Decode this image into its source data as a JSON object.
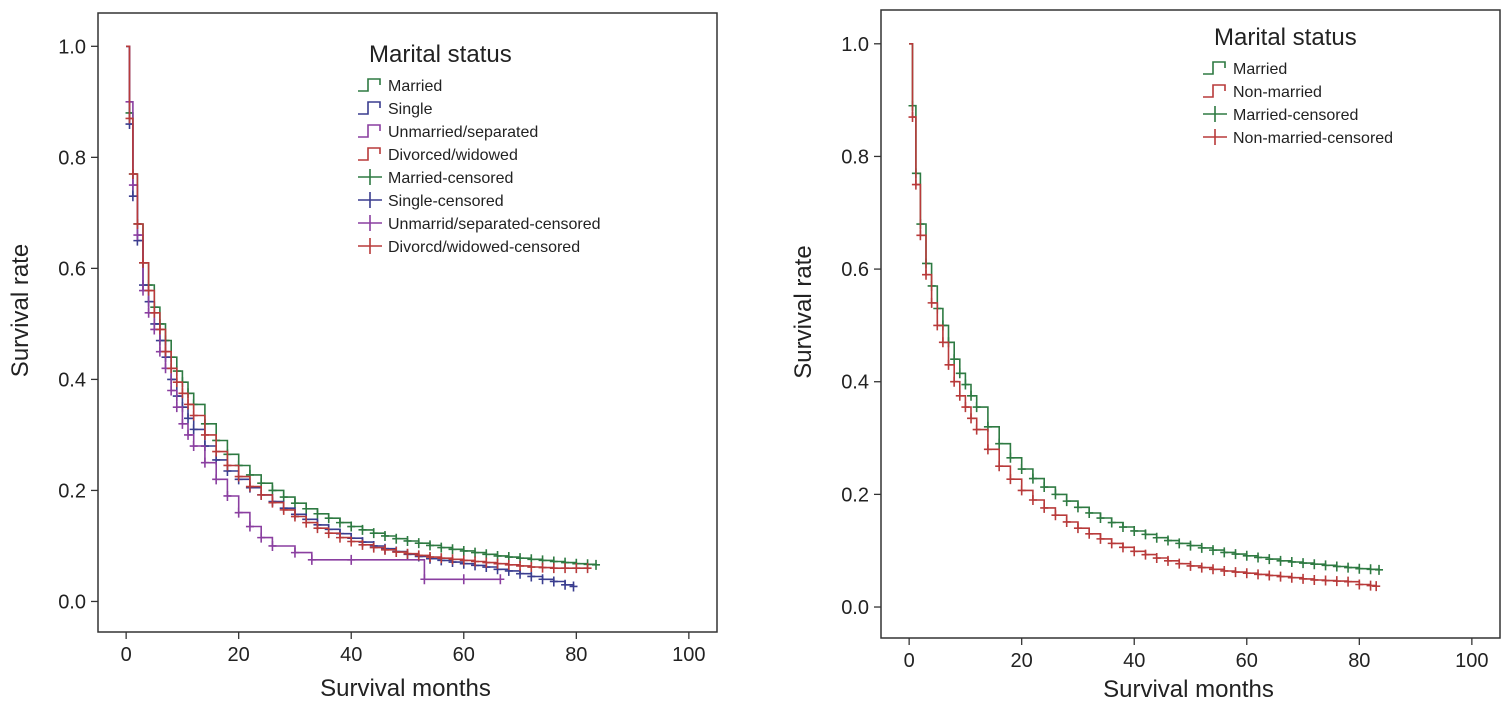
{
  "chart_data": [
    {
      "type": "line",
      "xlabel": "Survival months",
      "ylabel": "Survival rate",
      "xlim": [
        -5,
        105
      ],
      "ylim": [
        -0.055,
        1.06
      ],
      "xticks": [
        "0",
        "20",
        "40",
        "60",
        "80",
        "100"
      ],
      "yticks": [
        "0.0",
        "0.2",
        "0.4",
        "0.6",
        "0.8",
        "1.0"
      ],
      "grid": false,
      "legend_title": "Marital status",
      "legend_position": "top-right",
      "series": [
        {
          "name": "Married",
          "color": "#2e7a42",
          "x": [
            0,
            0.6,
            1.2,
            2,
            3,
            4,
            5,
            6,
            7,
            8,
            9,
            10,
            11,
            12,
            14,
            16,
            18,
            20,
            22,
            24,
            26,
            28,
            30,
            32,
            34,
            36,
            38,
            40,
            42,
            44,
            46,
            48,
            50,
            52,
            54,
            56,
            58,
            60,
            62,
            64,
            66,
            68,
            70,
            72,
            74,
            76,
            78,
            80,
            82,
            83.5
          ],
          "y": [
            1.0,
            0.88,
            0.77,
            0.68,
            0.61,
            0.57,
            0.53,
            0.5,
            0.47,
            0.44,
            0.415,
            0.395,
            0.375,
            0.355,
            0.32,
            0.29,
            0.265,
            0.245,
            0.228,
            0.213,
            0.2,
            0.188,
            0.177,
            0.167,
            0.158,
            0.15,
            0.142,
            0.135,
            0.129,
            0.123,
            0.118,
            0.113,
            0.109,
            0.105,
            0.101,
            0.097,
            0.094,
            0.091,
            0.088,
            0.085,
            0.082,
            0.08,
            0.078,
            0.076,
            0.074,
            0.072,
            0.07,
            0.068,
            0.067,
            0.066
          ]
        },
        {
          "name": "Single",
          "color": "#3a3d8f",
          "x": [
            0,
            0.6,
            1.2,
            2,
            3,
            4,
            5,
            6,
            7,
            8,
            9,
            10,
            11,
            12,
            14,
            16,
            18,
            20,
            22,
            24,
            26,
            28,
            30,
            32,
            34,
            36,
            38,
            40,
            42,
            44,
            46,
            48,
            50,
            52,
            54,
            56,
            58,
            60,
            62,
            64,
            66,
            68,
            70,
            72,
            74,
            76,
            78,
            79.5
          ],
          "y": [
            1.0,
            0.86,
            0.73,
            0.65,
            0.57,
            0.54,
            0.5,
            0.47,
            0.44,
            0.4,
            0.37,
            0.35,
            0.33,
            0.31,
            0.28,
            0.255,
            0.235,
            0.22,
            0.205,
            0.192,
            0.18,
            0.168,
            0.157,
            0.148,
            0.138,
            0.13,
            0.122,
            0.114,
            0.107,
            0.1,
            0.095,
            0.09,
            0.085,
            0.081,
            0.077,
            0.074,
            0.071,
            0.068,
            0.065,
            0.062,
            0.058,
            0.055,
            0.05,
            0.045,
            0.04,
            0.036,
            0.03,
            0.027
          ]
        },
        {
          "name": "Unmarried/separated",
          "color": "#8a3fa0",
          "x": [
            0,
            0.6,
            1.2,
            2,
            3,
            4,
            5,
            6,
            7,
            8,
            9,
            10,
            11,
            12,
            14,
            16,
            18,
            20,
            22,
            24,
            26,
            30,
            33,
            40,
            53,
            60,
            66.5
          ],
          "y": [
            1.0,
            0.9,
            0.75,
            0.66,
            0.56,
            0.52,
            0.49,
            0.45,
            0.42,
            0.38,
            0.35,
            0.32,
            0.3,
            0.28,
            0.25,
            0.22,
            0.19,
            0.16,
            0.135,
            0.115,
            0.1,
            0.088,
            0.075,
            0.075,
            0.04,
            0.04,
            0.04
          ]
        },
        {
          "name": "Divorced/widowed",
          "color": "#b83a3a",
          "x": [
            0,
            0.6,
            1.2,
            2,
            3,
            4,
            5,
            6,
            7,
            8,
            9,
            10,
            11,
            12,
            14,
            16,
            18,
            20,
            22,
            24,
            26,
            28,
            30,
            32,
            34,
            36,
            38,
            40,
            42,
            44,
            46,
            48,
            50,
            52,
            54,
            56,
            58,
            60,
            62,
            64,
            66,
            68,
            70,
            72,
            74,
            76,
            78,
            80,
            82
          ],
          "y": [
            1.0,
            0.87,
            0.77,
            0.68,
            0.61,
            0.56,
            0.52,
            0.49,
            0.45,
            0.42,
            0.395,
            0.375,
            0.355,
            0.335,
            0.3,
            0.27,
            0.245,
            0.225,
            0.207,
            0.192,
            0.178,
            0.165,
            0.153,
            0.142,
            0.132,
            0.123,
            0.115,
            0.108,
            0.102,
            0.097,
            0.093,
            0.089,
            0.086,
            0.083,
            0.08,
            0.078,
            0.076,
            0.074,
            0.072,
            0.07,
            0.068,
            0.066,
            0.064,
            0.062,
            0.061,
            0.06,
            0.06,
            0.06,
            0.06
          ]
        },
        {
          "name": "Married-censored",
          "color": "#2e7a42",
          "kind": "censor"
        },
        {
          "name": "Single-censored",
          "color": "#3a3d8f",
          "kind": "censor"
        },
        {
          "name": "Unmarrid/separated-censored",
          "color": "#8a3fa0",
          "kind": "censor"
        },
        {
          "name": "Divorcd/widowed-censored",
          "color": "#b83a3a",
          "kind": "censor"
        }
      ]
    },
    {
      "type": "line",
      "xlabel": "Survival months",
      "ylabel": "Survival rate",
      "xlim": [
        -5,
        105
      ],
      "ylim": [
        -0.055,
        1.06
      ],
      "xticks": [
        "0",
        "20",
        "40",
        "60",
        "80",
        "100"
      ],
      "yticks": [
        "0.0",
        "0.2",
        "0.4",
        "0.6",
        "0.8",
        "1.0"
      ],
      "grid": false,
      "legend_title": "Marital status",
      "legend_position": "top-right",
      "series": [
        {
          "name": "Married",
          "color": "#2e7a42",
          "x": [
            0,
            0.6,
            1.2,
            2,
            3,
            4,
            5,
            6,
            7,
            8,
            9,
            10,
            11,
            12,
            14,
            16,
            18,
            20,
            22,
            24,
            26,
            28,
            30,
            32,
            34,
            36,
            38,
            40,
            42,
            44,
            46,
            48,
            50,
            52,
            54,
            56,
            58,
            60,
            62,
            64,
            66,
            68,
            70,
            72,
            74,
            76,
            78,
            80,
            82,
            83.5
          ],
          "y": [
            1.0,
            0.89,
            0.77,
            0.68,
            0.61,
            0.57,
            0.53,
            0.5,
            0.47,
            0.44,
            0.415,
            0.395,
            0.375,
            0.355,
            0.32,
            0.29,
            0.265,
            0.245,
            0.228,
            0.213,
            0.2,
            0.188,
            0.177,
            0.167,
            0.158,
            0.15,
            0.142,
            0.135,
            0.129,
            0.123,
            0.118,
            0.113,
            0.109,
            0.105,
            0.101,
            0.097,
            0.094,
            0.091,
            0.088,
            0.085,
            0.082,
            0.08,
            0.078,
            0.076,
            0.074,
            0.072,
            0.07,
            0.068,
            0.067,
            0.066
          ]
        },
        {
          "name": "Non-married",
          "color": "#b83a3a",
          "x": [
            0,
            0.6,
            1.2,
            2,
            3,
            4,
            5,
            6,
            7,
            8,
            9,
            10,
            11,
            12,
            14,
            16,
            18,
            20,
            22,
            24,
            26,
            28,
            30,
            32,
            34,
            36,
            38,
            40,
            42,
            44,
            46,
            48,
            50,
            52,
            54,
            56,
            58,
            60,
            62,
            64,
            66,
            68,
            70,
            72,
            74,
            76,
            78,
            80,
            82,
            83
          ],
          "y": [
            1.0,
            0.87,
            0.75,
            0.66,
            0.59,
            0.54,
            0.5,
            0.47,
            0.43,
            0.4,
            0.375,
            0.355,
            0.335,
            0.315,
            0.28,
            0.25,
            0.227,
            0.207,
            0.19,
            0.176,
            0.163,
            0.151,
            0.14,
            0.13,
            0.121,
            0.113,
            0.106,
            0.099,
            0.093,
            0.087,
            0.082,
            0.077,
            0.073,
            0.07,
            0.067,
            0.064,
            0.062,
            0.06,
            0.058,
            0.056,
            0.054,
            0.052,
            0.05,
            0.048,
            0.047,
            0.046,
            0.045,
            0.04,
            0.038,
            0.037
          ]
        },
        {
          "name": "Married-censored",
          "color": "#2e7a42",
          "kind": "censor"
        },
        {
          "name": "Non-married-censored",
          "color": "#b83a3a",
          "kind": "censor"
        }
      ]
    }
  ]
}
